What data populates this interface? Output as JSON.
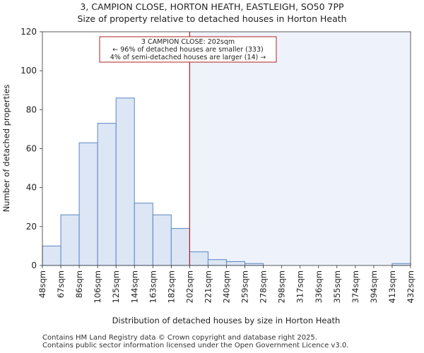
{
  "title_line1": "3, CAMPION CLOSE, HORTON HEATH, EASTLEIGH, SO50 7PP",
  "title_line2": "Size of property relative to detached houses in Horton Heath",
  "annotation": {
    "line1": "3 CAMPION CLOSE: 202sqm",
    "line2": "← 96% of detached houses are smaller (333)",
    "line3": "4% of semi-detached houses are larger (14) →"
  },
  "footer": {
    "line1": "Contains HM Land Registry data © Crown copyright and database right 2025.",
    "line2": "Contains public sector information licensed under the Open Government Licence v3.0."
  },
  "colors": {
    "bar_fill": "#dce6f4",
    "bar_stroke": "#5b87c5",
    "highlight_region": "#eef2fb",
    "marker_line": "#b22222",
    "annotation_border": "#b22222"
  },
  "chart_data": {
    "type": "bar",
    "title": "3, CAMPION CLOSE, HORTON HEATH, EASTLEIGH, SO50 7PP",
    "subtitle": "Size of property relative to detached houses in Horton Heath",
    "xlabel": "Distribution of detached houses by size in Horton Heath",
    "ylabel": "Number of detached properties",
    "bin_edges": [
      "48sqm",
      "67sqm",
      "86sqm",
      "106sqm",
      "125sqm",
      "144sqm",
      "163sqm",
      "182sqm",
      "202sqm",
      "221sqm",
      "240sqm",
      "259sqm",
      "278sqm",
      "298sqm",
      "317sqm",
      "336sqm",
      "355sqm",
      "374sqm",
      "394sqm",
      "413sqm",
      "432sqm"
    ],
    "values": [
      10,
      26,
      63,
      73,
      86,
      32,
      26,
      19,
      7,
      3,
      2,
      1,
      0,
      0,
      0,
      0,
      0,
      0,
      0,
      1
    ],
    "yticks": [
      0,
      20,
      40,
      60,
      80,
      100,
      120
    ],
    "ylim": [
      0,
      120
    ],
    "marker_bin_index": 8,
    "marker_label": "202sqm",
    "grid": false
  }
}
